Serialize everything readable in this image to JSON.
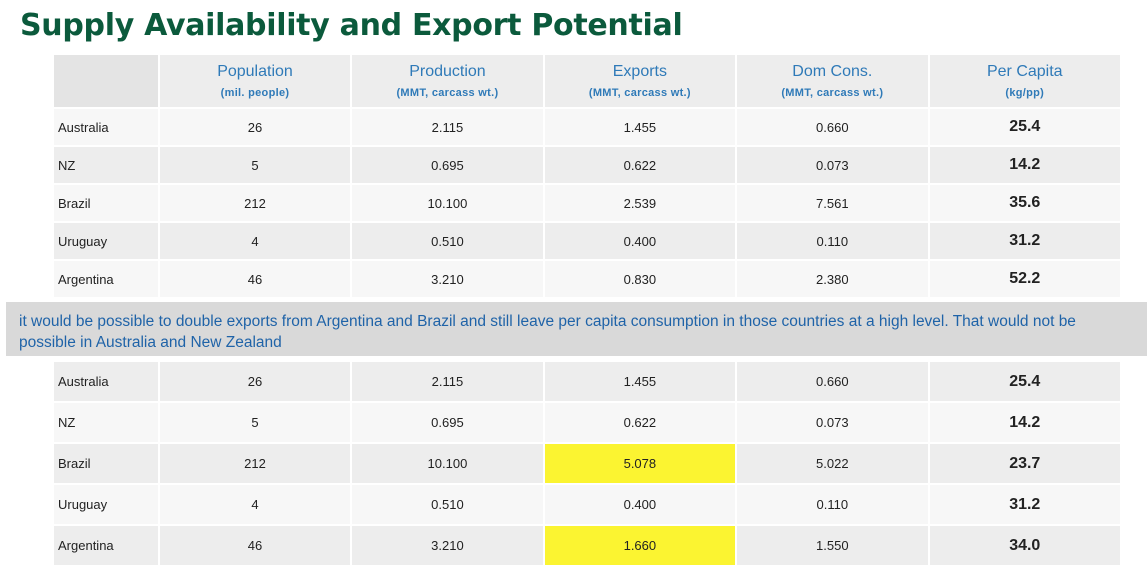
{
  "title": "Supply Availability and Export Potential",
  "headers": [
    {
      "main": "Population",
      "sub": "(mil. people)"
    },
    {
      "main": "Production",
      "sub": "(MMT, carcass wt.)"
    },
    {
      "main": "Exports",
      "sub": "(MMT, carcass wt.)"
    },
    {
      "main": "Dom Cons.",
      "sub": "(MMT, carcass wt.)"
    },
    {
      "main": "Per Capita",
      "sub": "(kg/pp)"
    }
  ],
  "top_table": [
    {
      "country": "Australia",
      "population": "26",
      "production": "2.115",
      "exports": "1.455",
      "dom_cons": "0.660",
      "per_capita": "25.4"
    },
    {
      "country": "NZ",
      "population": "5",
      "production": "0.695",
      "exports": "0.622",
      "dom_cons": "0.073",
      "per_capita": "14.2"
    },
    {
      "country": "Brazil",
      "population": "212",
      "production": "10.100",
      "exports": "2.539",
      "dom_cons": "7.561",
      "per_capita": "35.6"
    },
    {
      "country": "Uruguay",
      "population": "4",
      "production": "0.510",
      "exports": "0.400",
      "dom_cons": "0.110",
      "per_capita": "31.2"
    },
    {
      "country": "Argentina",
      "population": "46",
      "production": "3.210",
      "exports": "0.830",
      "dom_cons": "2.380",
      "per_capita": "52.2"
    }
  ],
  "note": "it would be possible to double exports from Argentina and Brazil and still leave per capita consumption in those countries at a high level.  That would not be possible in Australia and New Zealand",
  "bottom_table": [
    {
      "country": "Australia",
      "population": "26",
      "production": "2.115",
      "exports": "1.455",
      "dom_cons": "0.660",
      "per_capita": "25.4"
    },
    {
      "country": "NZ",
      "population": "5",
      "production": "0.695",
      "exports": "0.622",
      "dom_cons": "0.073",
      "per_capita": "14.2"
    },
    {
      "country": "Brazil",
      "population": "212",
      "production": "10.100",
      "exports": "5.078",
      "dom_cons": "5.022",
      "per_capita": "23.7"
    },
    {
      "country": "Uruguay",
      "population": "4",
      "production": "0.510",
      "exports": "0.400",
      "dom_cons": "0.110",
      "per_capita": "31.2"
    },
    {
      "country": "Argentina",
      "population": "46",
      "production": "3.210",
      "exports": "1.660",
      "dom_cons": "1.550",
      "per_capita": "34.0"
    }
  ],
  "highlight_color": "#fbf431",
  "title_color": "#0b5a3c",
  "header_text_color": "#2f7ab8",
  "note_text_color": "#1f63a8"
}
